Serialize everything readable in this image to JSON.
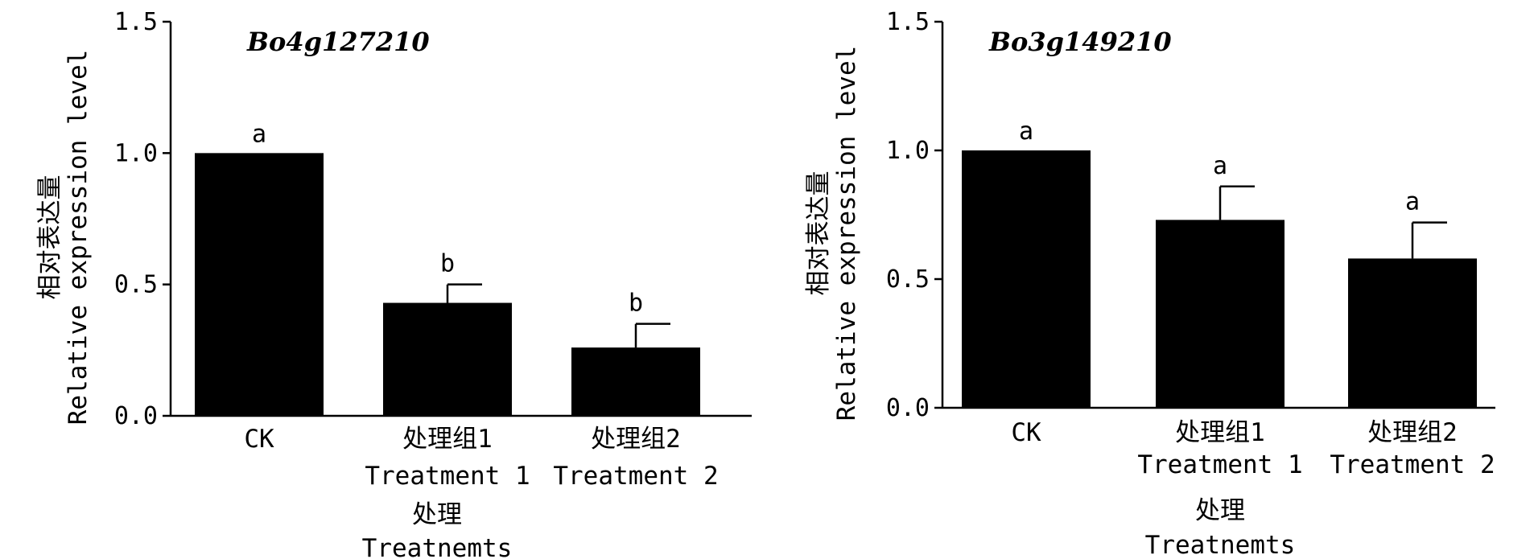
{
  "chart_data": [
    {
      "type": "bar",
      "title": "Bo4g127210",
      "ylabel": "相对表达量",
      "ylabel_en": "Relative expression level",
      "xlabel": "处理",
      "xlabel_en": "Treatnemts",
      "ylim": [
        0,
        1.5
      ],
      "yticks": [
        "0.0",
        "0.5",
        "1.0",
        "1.5"
      ],
      "categories": [
        "CK",
        "处理组1",
        "处理组2"
      ],
      "categories_en": [
        "",
        "Treatment 1",
        "Treatment 2"
      ],
      "values": [
        1.0,
        0.43,
        0.26
      ],
      "errors": [
        0.0,
        0.07,
        0.09
      ],
      "significance": [
        "a",
        "b",
        "b"
      ]
    },
    {
      "type": "bar",
      "title": "Bo3g149210",
      "ylabel": "相对表达量",
      "ylabel_en": "Relative expression level",
      "xlabel": "处理",
      "xlabel_en": "Treatnemts",
      "ylim": [
        0,
        1.5
      ],
      "yticks": [
        "0.0",
        "0.5",
        "1.0",
        "1.5"
      ],
      "categories": [
        "CK",
        "处理组1",
        "处理组2"
      ],
      "categories_en": [
        "",
        "Treatment 1",
        "Treatment 2"
      ],
      "values": [
        1.0,
        0.73,
        0.58
      ],
      "errors": [
        0.0,
        0.13,
        0.14
      ],
      "significance": [
        "a",
        "a",
        "a"
      ]
    }
  ],
  "colors": {
    "bar": "#000000",
    "axis": "#000000"
  }
}
